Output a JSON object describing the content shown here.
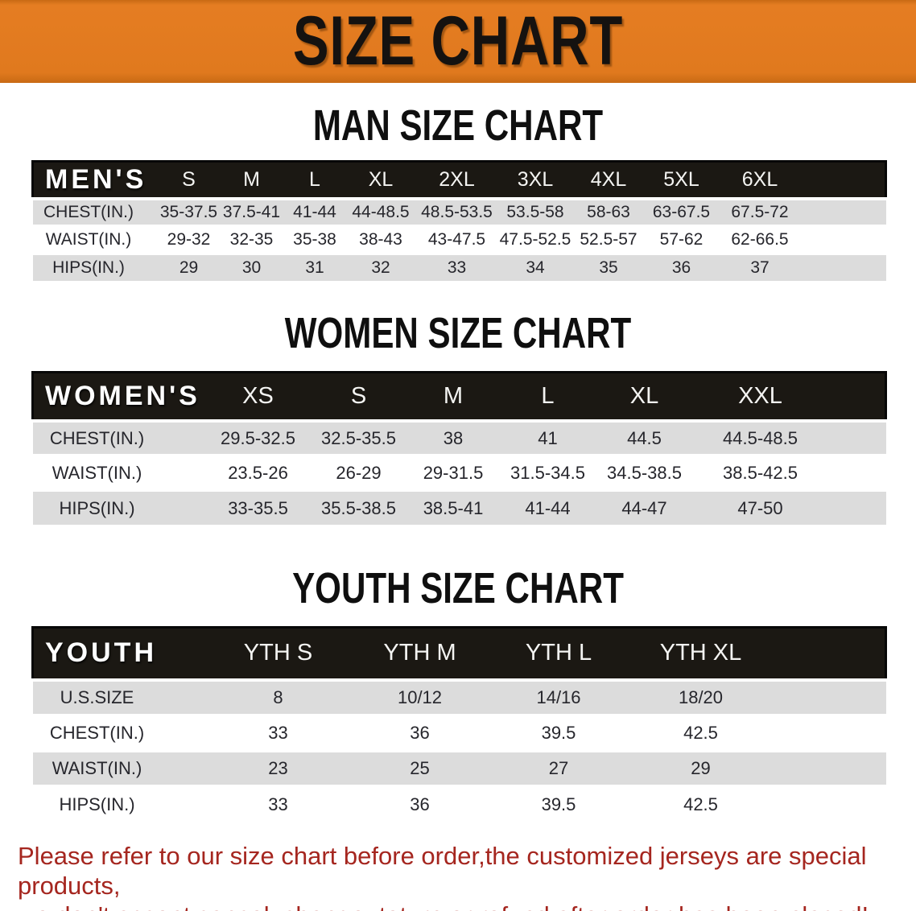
{
  "banner": {
    "title": "SIZE CHART",
    "bg_color": "#e0791e"
  },
  "sections": [
    {
      "heading": "MAN SIZE CHART",
      "table": {
        "header_label": "MEN'S",
        "columns": [
          "S",
          "M",
          "L",
          "XL",
          "2XL",
          "3XL",
          "4XL",
          "5XL",
          "6XL"
        ],
        "rows": [
          {
            "label": "CHEST(IN.)",
            "values": [
              "35-37.5",
              "37.5-41",
              "41-44",
              "44-48.5",
              "48.5-53.5",
              "53.5-58",
              "58-63",
              "63-67.5",
              "67.5-72"
            ]
          },
          {
            "label": "WAIST(IN.)",
            "values": [
              "29-32",
              "32-35",
              "35-38",
              "38-43",
              "43-47.5",
              "47.5-52.5",
              "52.5-57",
              "57-62",
              "62-66.5"
            ]
          },
          {
            "label": "HIPS(IN.)",
            "values": [
              "29",
              "30",
              "31",
              "32",
              "33",
              "34",
              "35",
              "36",
              "37"
            ]
          }
        ]
      }
    },
    {
      "heading": "WOMEN SIZE CHART",
      "table": {
        "header_label": "WOMEN'S",
        "columns": [
          "XS",
          "S",
          "M",
          "L",
          "XL",
          "XXL"
        ],
        "rows": [
          {
            "label": "CHEST(IN.)",
            "values": [
              "29.5-32.5",
              "32.5-35.5",
              "38",
              "41",
              "44.5",
              "44.5-48.5"
            ]
          },
          {
            "label": "WAIST(IN.)",
            "values": [
              "23.5-26",
              "26-29",
              "29-31.5",
              "31.5-34.5",
              "34.5-38.5",
              "38.5-42.5"
            ]
          },
          {
            "label": "HIPS(IN.)",
            "values": [
              "33-35.5",
              "35.5-38.5",
              "38.5-41",
              "41-44",
              "44-47",
              "47-50"
            ]
          }
        ]
      }
    },
    {
      "heading": "YOUTH SIZE CHART",
      "table": {
        "header_label": "YOUTH",
        "columns": [
          "YTH S",
          "YTH M",
          "YTH L",
          "YTH XL"
        ],
        "rows": [
          {
            "label": "U.S.SIZE",
            "values": [
              "8",
              "10/12",
              "14/16",
              "18/20"
            ]
          },
          {
            "label": "CHEST(IN.)",
            "values": [
              "33",
              "36",
              "39.5",
              "42.5"
            ]
          },
          {
            "label": "WAIST(IN.)",
            "values": [
              "23",
              "25",
              "27",
              "29"
            ]
          },
          {
            "label": "HIPS(IN.)",
            "values": [
              "33",
              "36",
              "39.5",
              "42.5"
            ]
          }
        ]
      }
    }
  ],
  "footer": {
    "lines": [
      "Please refer to our size chart before order,the customized jerseys are special products,",
      "we don't accept cancel, change, teturn or refund after order has been placed!"
    ],
    "text_color": "#a5261f"
  },
  "colors": {
    "banner_orange": "#e0791e",
    "table_header_black": "#1b1813",
    "shaded_row_gray": "#dcdcdc",
    "disclaimer_red": "#a5261f"
  }
}
